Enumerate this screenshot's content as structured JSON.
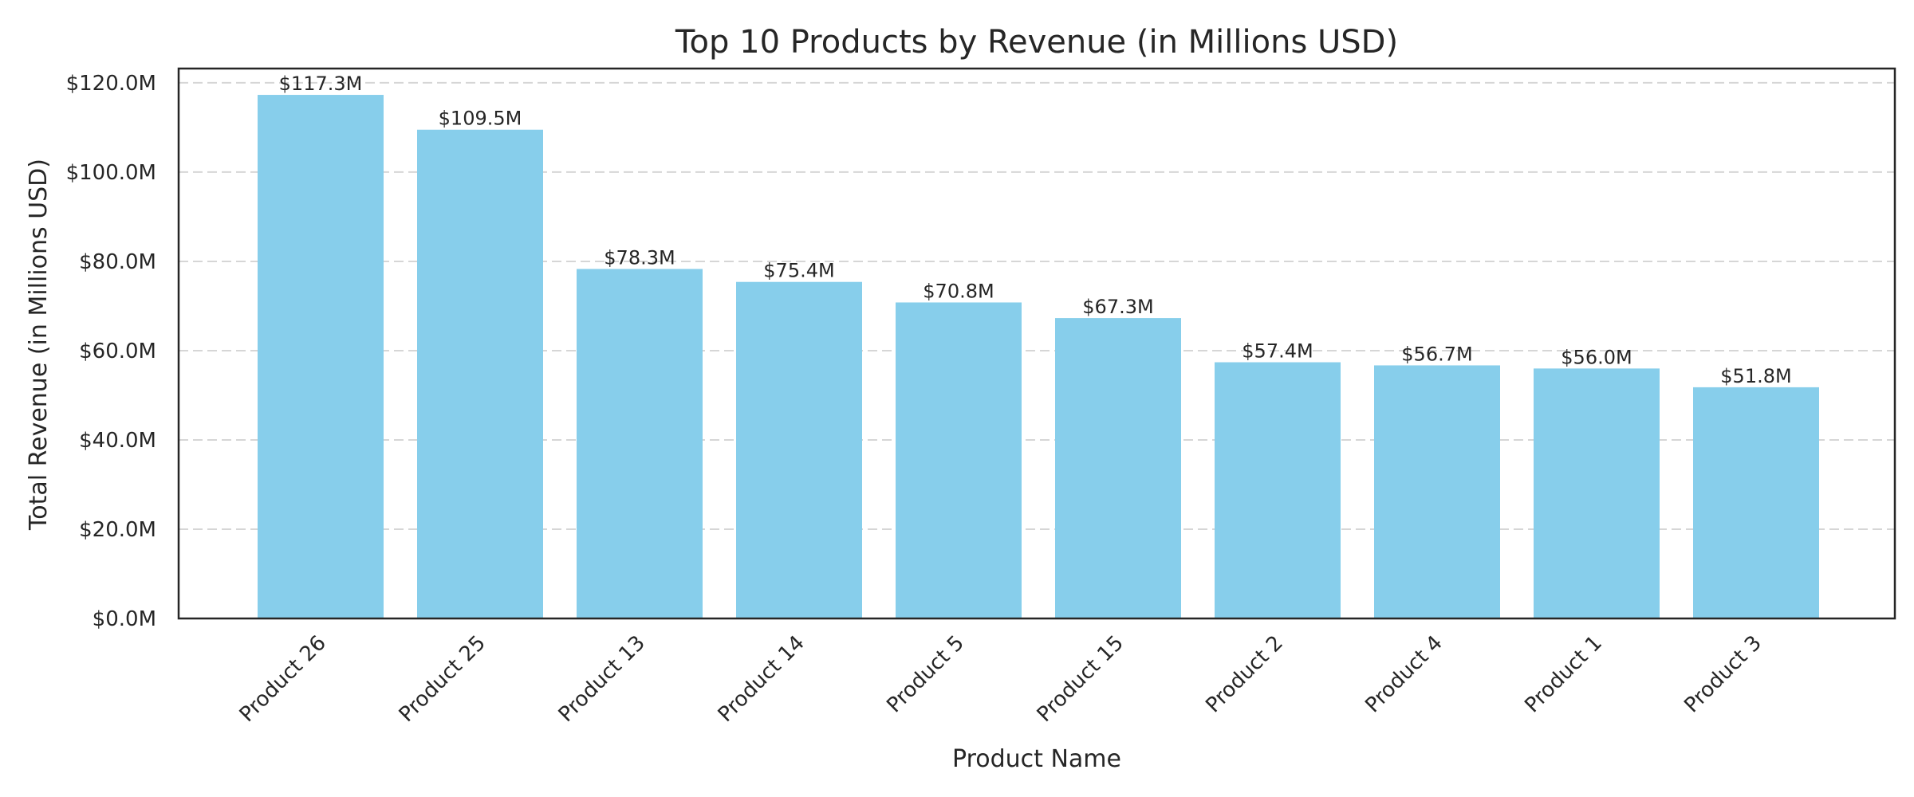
{
  "chart_data": {
    "type": "bar",
    "title": "Top 10 Products by Revenue (in Millions USD)",
    "xlabel": "Product Name",
    "ylabel": "Total Revenue (in Millions USD)",
    "categories": [
      "Product 26",
      "Product 25",
      "Product 13",
      "Product 14",
      "Product 5",
      "Product 15",
      "Product 2",
      "Product 4",
      "Product 1",
      "Product 3"
    ],
    "values": [
      117.3,
      109.5,
      78.3,
      75.4,
      70.8,
      67.3,
      57.4,
      56.7,
      56.0,
      51.8
    ],
    "value_labels": [
      "$117.3M",
      "$109.5M",
      "$78.3M",
      "$75.4M",
      "$70.8M",
      "$67.3M",
      "$57.4M",
      "$56.7M",
      "$56.0M",
      "$51.8M"
    ],
    "ylim": [
      0,
      123.2
    ],
    "yticks": [
      0,
      20,
      40,
      60,
      80,
      100,
      120
    ],
    "ytick_labels": [
      "$0.0M",
      "$20.0M",
      "$40.0M",
      "$60.0M",
      "$80.0M",
      "$100.0M",
      "$120.0M"
    ],
    "grid": "horizontal-dashed",
    "bar_color": "#87CEEB"
  }
}
